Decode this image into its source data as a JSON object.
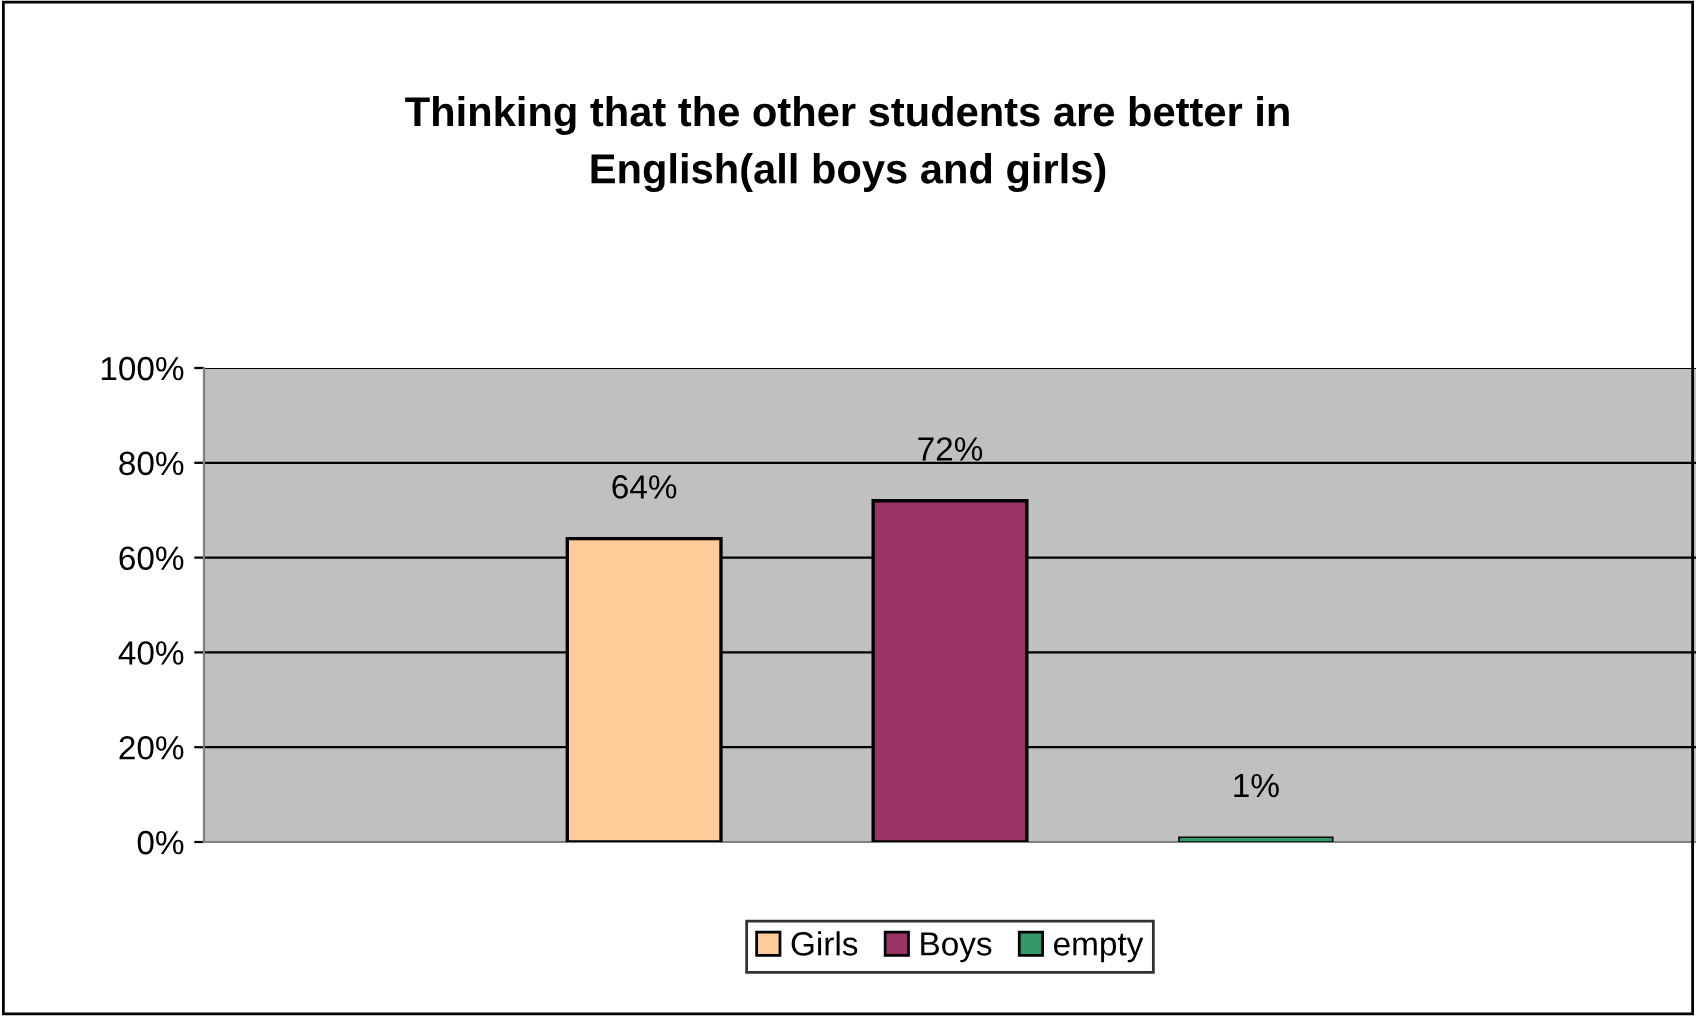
{
  "chart_data": {
    "type": "bar",
    "title": "Thinking that the other students are better in\nEnglish(all boys and girls)",
    "categories": [
      null
    ],
    "series": [
      {
        "name": "Girls",
        "color": "#ffcc99",
        "values": [
          64
        ],
        "value_labels": [
          "64%"
        ]
      },
      {
        "name": "Boys",
        "color": "#993366",
        "values": [
          72
        ],
        "value_labels": [
          "72%"
        ]
      },
      {
        "name": "empty",
        "color": "#339966",
        "values": [
          1
        ],
        "value_labels": [
          "1%"
        ]
      }
    ],
    "ylim": [
      0,
      100
    ],
    "yticks": [
      {
        "value": 0,
        "label": "0%"
      },
      {
        "value": 20,
        "label": "20%"
      },
      {
        "value": 40,
        "label": "40%"
      },
      {
        "value": 60,
        "label": "60%"
      },
      {
        "value": 80,
        "label": "80%"
      },
      {
        "value": 100,
        "label": "100%"
      }
    ],
    "grid": "y",
    "legend": "bottom"
  }
}
